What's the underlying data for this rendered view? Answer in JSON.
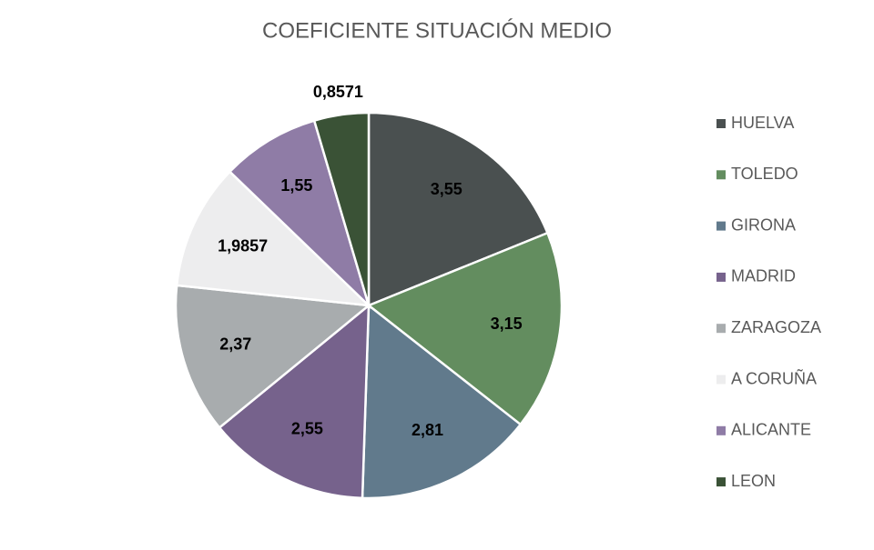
{
  "chart_data": {
    "type": "pie",
    "title": "COEFICIENTE SITUACIÓN MEDIO",
    "categories": [
      "HUELVA",
      "TOLEDO",
      "GIRONA",
      "MADRID",
      "ZARAGOZA",
      "A CORUÑA",
      "ALICANTE",
      "LEON"
    ],
    "values": [
      3.55,
      3.15,
      2.81,
      2.55,
      2.37,
      1.9857,
      1.55,
      0.8571
    ],
    "value_labels": [
      "3,55",
      "3,15",
      "2,81",
      "2,55",
      "2,37",
      "1,9857",
      "1,55",
      "0,8571"
    ],
    "colors": [
      "#4a5050",
      "#638d5f",
      "#617a8c",
      "#76628c",
      "#a8acae",
      "#ededee",
      "#8f7ca6",
      "#3a5236"
    ],
    "legend": "right"
  }
}
